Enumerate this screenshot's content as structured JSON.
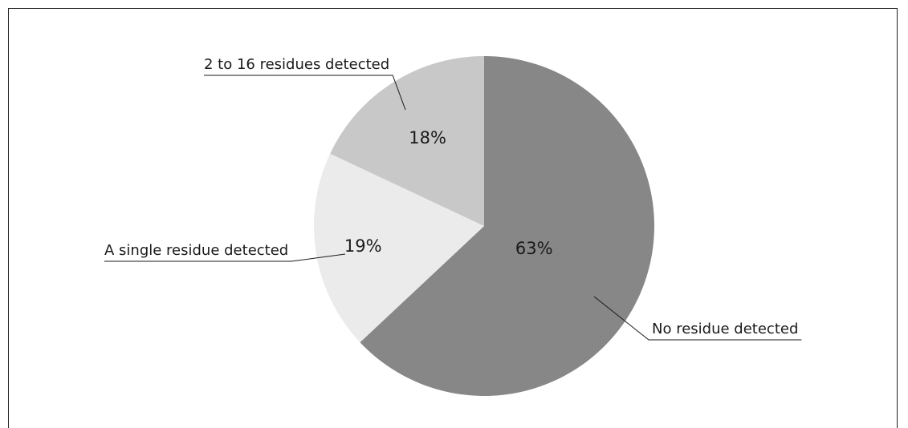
{
  "chart_data": {
    "type": "pie",
    "title": "",
    "start_angle_deg": 0,
    "direction": "clockwise",
    "slices": [
      {
        "label": "No residue detected",
        "value": 63,
        "percent_label": "63%",
        "color": "#878787"
      },
      {
        "label": "A single residue detected",
        "value": 19,
        "percent_label": "19%",
        "color": "#ebebeb"
      },
      {
        "label": "2 to 16 residues detected",
        "value": 18,
        "percent_label": "18%",
        "color": "#c8c8c8"
      }
    ],
    "legend": "none (callout labels with leader lines)"
  }
}
